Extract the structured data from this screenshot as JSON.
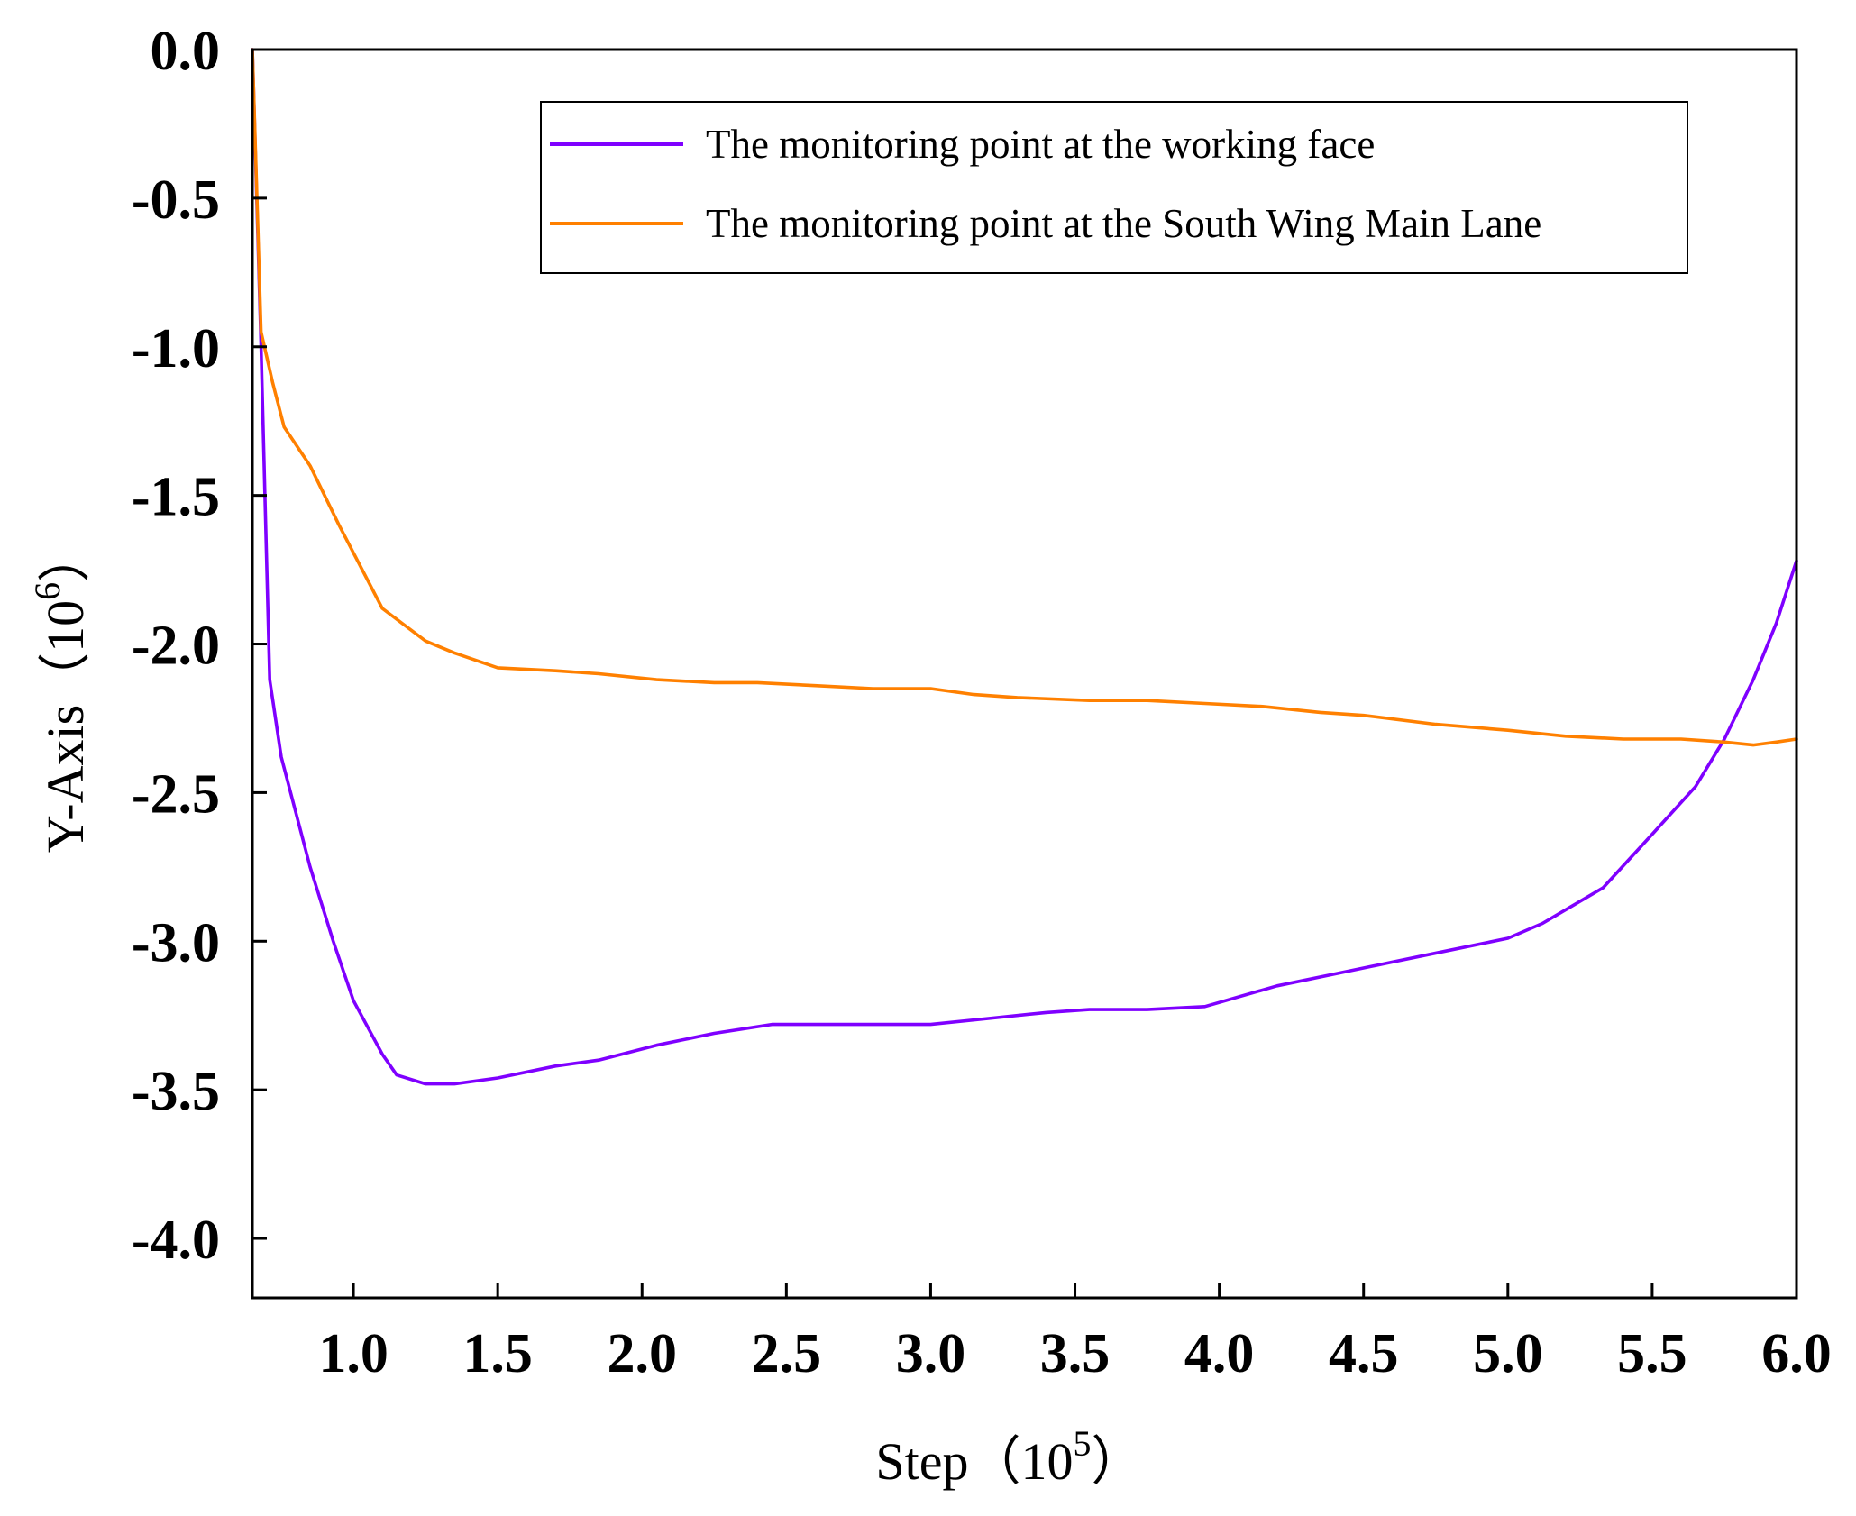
{
  "chart_data": {
    "type": "line",
    "title": "",
    "xlabel": {
      "text": "Step（10",
      "exponent": "5",
      "suffix": "）"
    },
    "ylabel": {
      "text": "Y-Axis（10",
      "exponent": "6",
      "suffix": "）"
    },
    "xlim": [
      0.65,
      6.0
    ],
    "ylim": [
      -4.2,
      0.0
    ],
    "x_ticks": [
      1.0,
      1.5,
      2.0,
      2.5,
      3.0,
      3.5,
      4.0,
      4.5,
      5.0,
      5.5,
      6.0
    ],
    "x_tick_labels": [
      "1.0",
      "1.5",
      "2.0",
      "2.5",
      "3.0",
      "3.5",
      "4.0",
      "4.5",
      "5.0",
      "5.5",
      "6.0"
    ],
    "y_ticks": [
      0.0,
      -0.5,
      -1.0,
      -1.5,
      -2.0,
      -2.5,
      -3.0,
      -3.5,
      -4.0
    ],
    "y_tick_labels": [
      "0.0",
      "-0.5",
      "-1.0",
      "-1.5",
      "-2.0",
      "-2.5",
      "-3.0",
      "-3.5",
      "-4.0"
    ],
    "grid": false,
    "legend_position": "top-right",
    "series": [
      {
        "name": "The monitoring point at the working face",
        "color": "#7f00ff",
        "points": [
          [
            0.65,
            0.0
          ],
          [
            0.68,
            -1.0
          ],
          [
            0.71,
            -2.12
          ],
          [
            0.75,
            -2.38
          ],
          [
            0.85,
            -2.75
          ],
          [
            0.93,
            -3.0
          ],
          [
            1.0,
            -3.2
          ],
          [
            1.1,
            -3.38
          ],
          [
            1.15,
            -3.45
          ],
          [
            1.25,
            -3.48
          ],
          [
            1.35,
            -3.48
          ],
          [
            1.5,
            -3.46
          ],
          [
            1.7,
            -3.42
          ],
          [
            1.85,
            -3.4
          ],
          [
            2.05,
            -3.35
          ],
          [
            2.25,
            -3.31
          ],
          [
            2.45,
            -3.28
          ],
          [
            2.6,
            -3.28
          ],
          [
            2.8,
            -3.28
          ],
          [
            3.0,
            -3.28
          ],
          [
            3.2,
            -3.26
          ],
          [
            3.4,
            -3.24
          ],
          [
            3.55,
            -3.23
          ],
          [
            3.75,
            -3.23
          ],
          [
            3.95,
            -3.22
          ],
          [
            4.2,
            -3.15
          ],
          [
            4.4,
            -3.11
          ],
          [
            4.6,
            -3.07
          ],
          [
            4.8,
            -3.03
          ],
          [
            5.0,
            -2.99
          ],
          [
            5.12,
            -2.94
          ],
          [
            5.33,
            -2.82
          ],
          [
            5.5,
            -2.64
          ],
          [
            5.65,
            -2.48
          ],
          [
            5.75,
            -2.32
          ],
          [
            5.85,
            -2.12
          ],
          [
            5.93,
            -1.93
          ],
          [
            6.0,
            -1.72
          ]
        ]
      },
      {
        "name": "The monitoring point at the South Wing Main Lane",
        "color": "#ff8000",
        "points": [
          [
            0.65,
            0.0
          ],
          [
            0.68,
            -0.95
          ],
          [
            0.72,
            -1.12
          ],
          [
            0.76,
            -1.27
          ],
          [
            0.85,
            -1.4
          ],
          [
            0.95,
            -1.6
          ],
          [
            1.1,
            -1.88
          ],
          [
            1.25,
            -1.99
          ],
          [
            1.35,
            -2.03
          ],
          [
            1.5,
            -2.08
          ],
          [
            1.7,
            -2.09
          ],
          [
            1.85,
            -2.1
          ],
          [
            2.05,
            -2.12
          ],
          [
            2.25,
            -2.13
          ],
          [
            2.4,
            -2.13
          ],
          [
            2.6,
            -2.14
          ],
          [
            2.8,
            -2.15
          ],
          [
            3.0,
            -2.15
          ],
          [
            3.15,
            -2.17
          ],
          [
            3.3,
            -2.18
          ],
          [
            3.55,
            -2.19
          ],
          [
            3.75,
            -2.19
          ],
          [
            3.95,
            -2.2
          ],
          [
            4.15,
            -2.21
          ],
          [
            4.35,
            -2.23
          ],
          [
            4.5,
            -2.24
          ],
          [
            4.75,
            -2.27
          ],
          [
            5.0,
            -2.29
          ],
          [
            5.2,
            -2.31
          ],
          [
            5.4,
            -2.32
          ],
          [
            5.6,
            -2.32
          ],
          [
            5.75,
            -2.33
          ],
          [
            5.85,
            -2.34
          ],
          [
            5.93,
            -2.33
          ],
          [
            6.0,
            -2.32
          ]
        ]
      }
    ]
  }
}
